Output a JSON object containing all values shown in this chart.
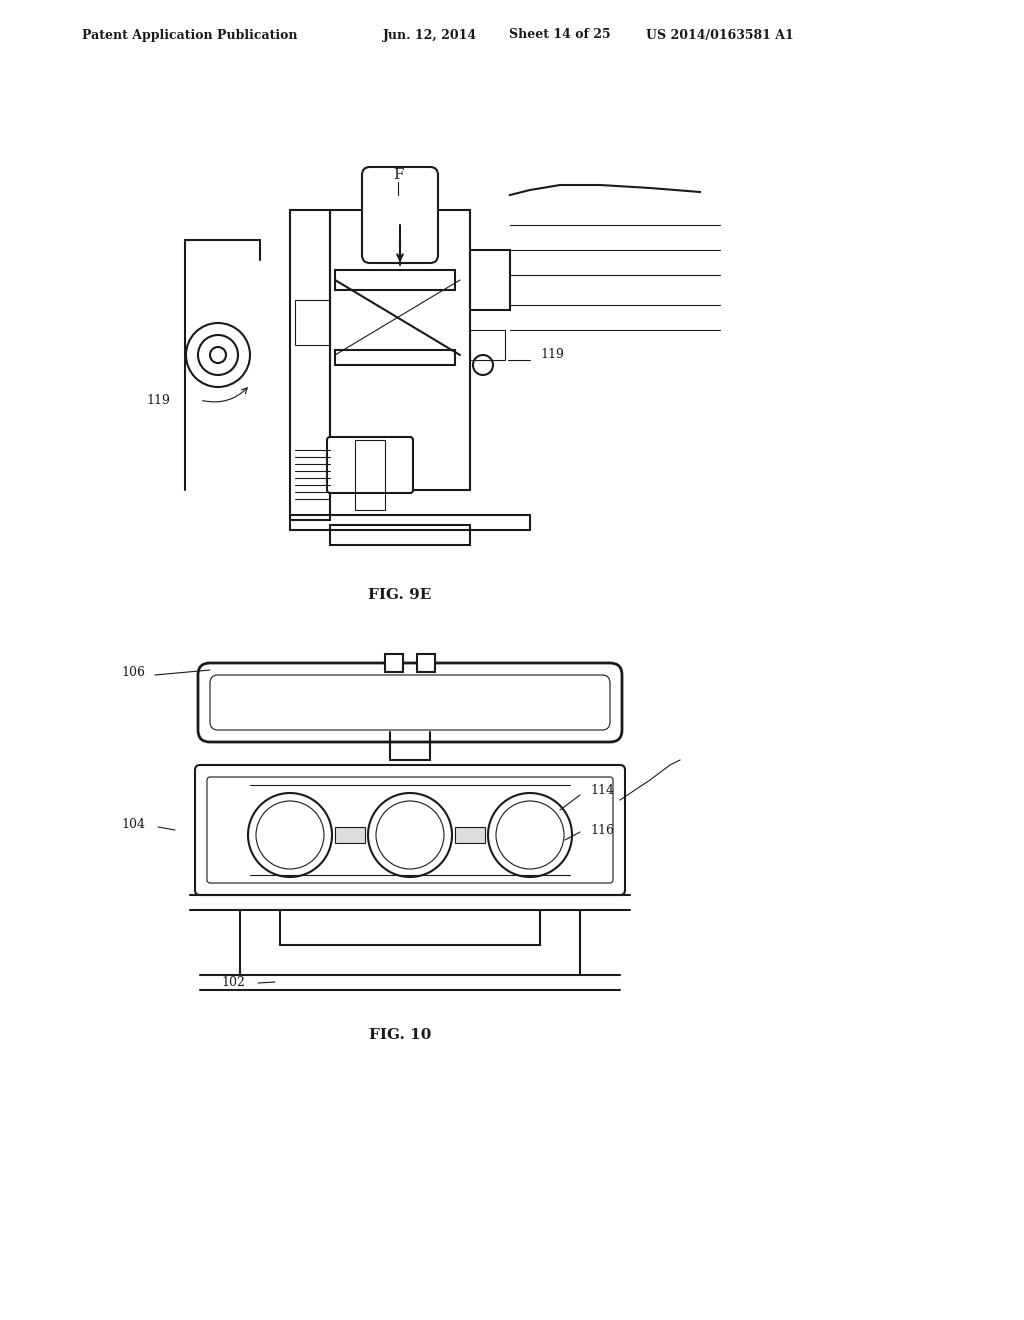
{
  "background_color": "#ffffff",
  "header_text": "Patent Application Publication",
  "header_date": "Jun. 12, 2014",
  "header_sheet": "Sheet 14 of 25",
  "header_patent": "US 2014/0163581 A1",
  "fig1_label": "FIG. 9E",
  "fig2_label": "FIG. 10",
  "line_color": "#1a1a1a",
  "line_width": 1.5,
  "thin_line": 0.8,
  "thick_line": 2.0
}
